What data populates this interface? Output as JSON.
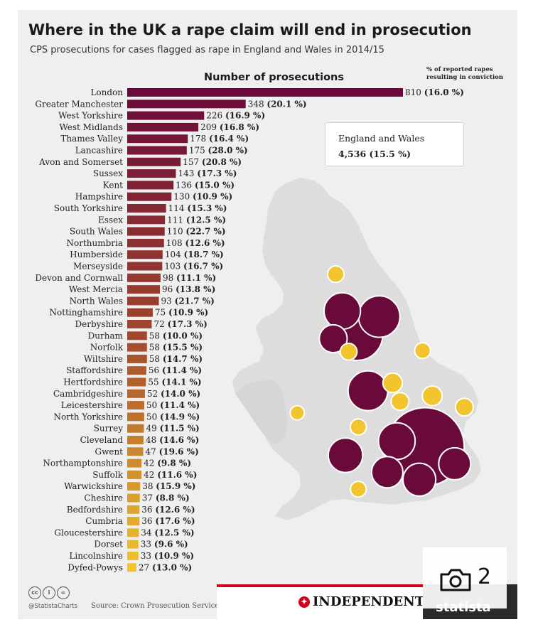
{
  "title": "Where in the UK a rape claim will end in prosecution",
  "subtitle": "CPS prosecutions for cases flagged as rape in England and Wales in 2014/15",
  "callout": {
    "label": "England and Wales",
    "value": "4,536 (15.5 %)"
  },
  "footer": {
    "handle": "@StatistaCharts",
    "source": "Source: Crown Prosecution Service",
    "publisher": "INDEPENDENT",
    "brand": "statista",
    "photo_count": "2"
  },
  "colors": {
    "dark": "#6a0a3a",
    "mid": "#a0452d",
    "light": "#f2c42e",
    "background": "#efefef",
    "map": "#dddddd"
  },
  "chart_data": {
    "type": "bar",
    "orientation": "horizontal",
    "title": "Number of prosecutions",
    "value_note": "% of reported rapes resulting in conviction",
    "categories": [
      "London",
      "Greater Manchester",
      "West Yorkshire",
      "West Midlands",
      "Thames Valley",
      "Lancashire",
      "Avon and Somerset",
      "Sussex",
      "Kent",
      "Hampshire",
      "South Yorkshire",
      "Essex",
      "South Wales",
      "Northumbria",
      "Humberside",
      "Merseyside",
      "Devon and Cornwall",
      "West Mercia",
      "North Wales",
      "Nottinghamshire",
      "Derbyshire",
      "Durham",
      "Norfolk",
      "Wiltshire",
      "Staffordshire",
      "Hertfordshire",
      "Cambridgeshire",
      "Leicestershire",
      "North Yorkshire",
      "Surrey",
      "Cleveland",
      "Gwent",
      "Northamptonshire",
      "Suffolk",
      "Warwickshire",
      "Cheshire",
      "Bedfordshire",
      "Cumbria",
      "Gloucestershire",
      "Dorset",
      "Lincolnshire",
      "Dyfed-Powys"
    ],
    "values": [
      810,
      348,
      226,
      209,
      178,
      175,
      157,
      143,
      136,
      130,
      114,
      111,
      110,
      108,
      104,
      103,
      98,
      96,
      93,
      75,
      72,
      58,
      58,
      58,
      56,
      55,
      52,
      50,
      50,
      49,
      48,
      47,
      42,
      42,
      38,
      37,
      36,
      36,
      34,
      33,
      33,
      27
    ],
    "conviction_labels": [
      "(16.0 %)",
      "(20.1 %)",
      "(16.9 %)",
      "(16.8 %)",
      "(16.4 %)",
      "(28.0 %)",
      "(20.8 %)",
      "(17.3 %)",
      "(15.0 %)",
      "(10.9 %)",
      "(15.3 %)",
      "(12.5 %)",
      "(22.7 %)",
      "(12.6 %)",
      "(18.7 %)",
      "(16.7 %)",
      "(11.1 %)",
      "(13.8 %)",
      "(21.7 %)",
      "(10.9 %)",
      "(17.3 %)",
      "(10.0 %)",
      "(15.5 %)",
      "(14.7 %)",
      "(11.4 %)",
      "(14.1 %)",
      "(14.0 %)",
      "(11.4 %)",
      "(14.9 %)",
      "(11.5 %)",
      "(14.6 %)",
      "(19.6 %)",
      "(9.8 %)",
      "(11.6 %)",
      "(15.9 %)",
      "(8.8 %)",
      "(12.6 %)",
      "(17.6 %)",
      "(12.5 %)",
      "(9.6 %)",
      "(10.9 %)",
      "(13.0 %)"
    ],
    "xlim": [
      0,
      810
    ]
  },
  "map_bubbles": [
    {
      "region": "London",
      "value": 810,
      "lon": -0.12,
      "lat": 51.5
    },
    {
      "region": "Greater Manchester",
      "value": 348,
      "lon": -2.24,
      "lat": 53.48
    },
    {
      "region": "West Yorkshire",
      "value": 226,
      "lon": -1.55,
      "lat": 53.8
    },
    {
      "region": "West Midlands",
      "value": 209,
      "lon": -1.9,
      "lat": 52.49
    },
    {
      "region": "Thames Valley",
      "value": 178,
      "lon": -1.0,
      "lat": 51.6
    },
    {
      "region": "Lancashire",
      "value": 175,
      "lon": -2.7,
      "lat": 53.9
    },
    {
      "region": "Avon and Somerset",
      "value": 157,
      "lon": -2.6,
      "lat": 51.35
    },
    {
      "region": "Sussex",
      "value": 143,
      "lon": -0.3,
      "lat": 50.92
    },
    {
      "region": "Kent",
      "value": 136,
      "lon": 0.8,
      "lat": 51.2
    },
    {
      "region": "Hampshire",
      "value": 130,
      "lon": -1.3,
      "lat": 51.05
    },
    {
      "region": "Merseyside",
      "value": 103,
      "lon": -2.98,
      "lat": 53.41
    },
    {
      "region": "Cumbria",
      "value": 36,
      "lon": -2.9,
      "lat": 54.55
    },
    {
      "region": "Cheshire",
      "value": 37,
      "lon": -2.5,
      "lat": 53.18
    },
    {
      "region": "Lincolnshire",
      "value": 33,
      "lon": -0.2,
      "lat": 53.2
    },
    {
      "region": "Leicestershire",
      "value": 50,
      "lon": -1.13,
      "lat": 52.63
    },
    {
      "region": "Cambridgeshire",
      "value": 52,
      "lon": 0.1,
      "lat": 52.4
    },
    {
      "region": "Northamptonshire",
      "value": 42,
      "lon": -0.9,
      "lat": 52.3
    },
    {
      "region": "Suffolk",
      "value": 42,
      "lon": 1.1,
      "lat": 52.2
    },
    {
      "region": "Dyfed-Powys",
      "value": 27,
      "lon": -4.1,
      "lat": 52.1
    },
    {
      "region": "Gloucestershire",
      "value": 34,
      "lon": -2.2,
      "lat": 51.85
    },
    {
      "region": "Dorset",
      "value": 33,
      "lon": -2.2,
      "lat": 50.75
    }
  ]
}
